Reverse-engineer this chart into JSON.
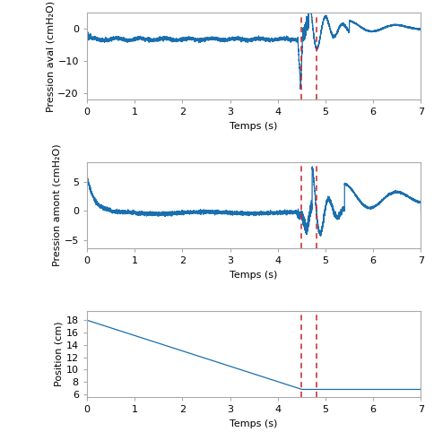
{
  "xlim": [
    0,
    7
  ],
  "dashed_lines": [
    4.5,
    4.82
  ],
  "dashed_color": "#cc2222",
  "line_color": "#1a6faf",
  "subplot1": {
    "ylabel": "Pression aval (cmH₂O)",
    "xlabel": "Temps (s)",
    "ylim": [
      -22,
      5
    ],
    "yticks": [
      0,
      -10,
      -20
    ],
    "xticks": [
      0,
      1,
      2,
      3,
      4,
      5,
      6,
      7
    ]
  },
  "subplot2": {
    "ylabel": "Pression amont (cmH₂O)",
    "xlabel": "Temps (s)",
    "ylim": [
      -6.5,
      8.5
    ],
    "yticks": [
      -5,
      0,
      5
    ],
    "xticks": [
      0,
      1,
      2,
      3,
      4,
      5,
      6,
      7
    ]
  },
  "subplot3": {
    "ylabel": "Position (cm)",
    "xlabel": "Temps (s)",
    "ylim": [
      5.5,
      19.5
    ],
    "yticks": [
      6,
      8,
      10,
      12,
      14,
      16,
      18
    ],
    "xticks": [
      0,
      1,
      2,
      3,
      4,
      5,
      6,
      7
    ]
  },
  "fig_facecolor": "#ffffff",
  "ax_facecolor": "#ffffff",
  "spine_color": "#aaaaaa"
}
